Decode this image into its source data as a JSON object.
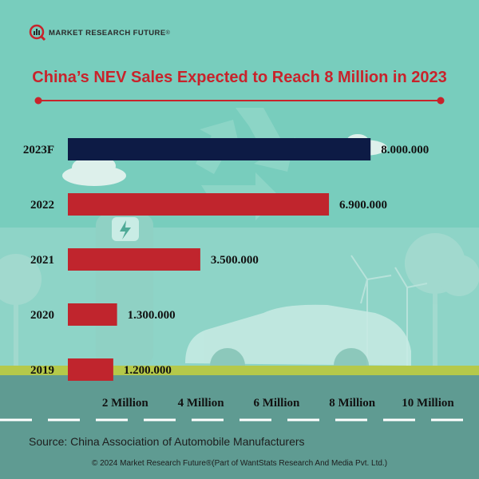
{
  "brand": {
    "name": "MARKET RESEARCH FUTURE",
    "reg": "®"
  },
  "chart_data": {
    "type": "bar",
    "orientation": "horizontal",
    "title": "China’s NEV Sales Expected to Reach 8 Million in 2023",
    "categories": [
      "2023F",
      "2022",
      "2021",
      "2020",
      "2019"
    ],
    "values": [
      8000000,
      6900000,
      3500000,
      1300000,
      1200000
    ],
    "value_labels": [
      "8.000.000",
      "6.900.000",
      "3.500.000",
      "1.300.000",
      "1.200.000"
    ],
    "bar_colors": [
      "#0d1b45",
      "#c0252d",
      "#c0252d",
      "#c0252d",
      "#c0252d"
    ],
    "x_ticks": [
      2000000,
      4000000,
      6000000,
      8000000,
      10000000
    ],
    "x_tick_labels": [
      "2 Million",
      "4 Million",
      "6 Million",
      "8 Million",
      "10 Million"
    ],
    "xlim": [
      0,
      10000000
    ],
    "xlabel": "",
    "ylabel": ""
  },
  "footer": {
    "source": "Source: China Association of Automobile Manufacturers",
    "copyright": "© 2024 Market Research Future®(Part of WantStats Research And Media Pvt. Ltd.)"
  },
  "colors": {
    "background": "#78cdbd",
    "accent": "#c8232b",
    "dark": "#0d1b45"
  }
}
